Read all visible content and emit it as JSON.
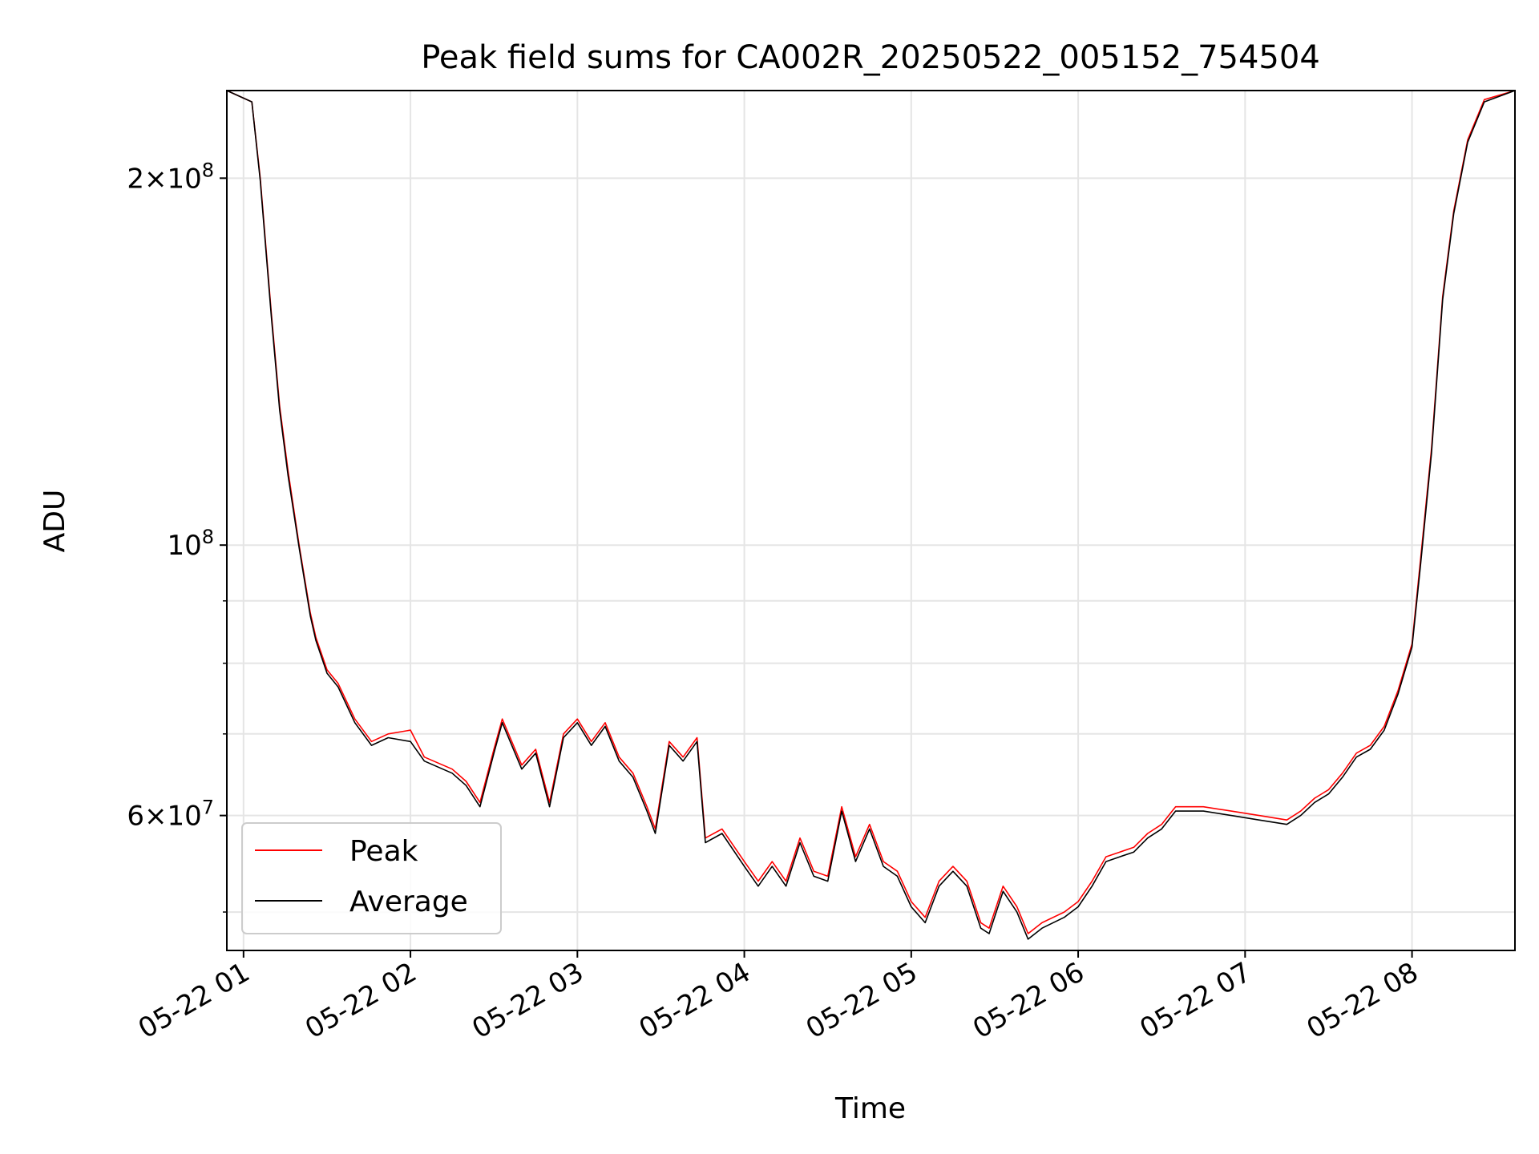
{
  "chart_data": {
    "type": "line",
    "title": "Peak field sums for CA002R_20250522_005152_754504",
    "xlabel": "Time",
    "ylabel": "ADU",
    "yscale": "log",
    "xlim": [
      "2025-05-22 00:54",
      "2025-05-22 08:37"
    ],
    "ylim": [
      46500000,
      236000000
    ],
    "grid": true,
    "legend_position": "lower-left",
    "x_ticks": [
      {
        "value": "2025-05-22 01:00",
        "label": "05-22 01"
      },
      {
        "value": "2025-05-22 02:00",
        "label": "05-22 02"
      },
      {
        "value": "2025-05-22 03:00",
        "label": "05-22 03"
      },
      {
        "value": "2025-05-22 04:00",
        "label": "05-22 04"
      },
      {
        "value": "2025-05-22 05:00",
        "label": "05-22 05"
      },
      {
        "value": "2025-05-22 06:00",
        "label": "05-22 06"
      },
      {
        "value": "2025-05-22 07:00",
        "label": "05-22 07"
      },
      {
        "value": "2025-05-22 08:00",
        "label": "05-22 08"
      }
    ],
    "y_major_ticks": [
      {
        "value": 200000000,
        "mantissa": "2",
        "exponent": "8"
      },
      {
        "value": 100000000,
        "mantissa": "",
        "exponent": "8"
      },
      {
        "value": 60000000,
        "mantissa": "6",
        "exponent": "7"
      }
    ],
    "y_minor_ticks": [
      50000000,
      70000000,
      80000000,
      90000000
    ],
    "series": [
      {
        "name": "Peak",
        "color": "#ff0000",
        "points": [
          [
            "2025-05-22 00:54",
            236000000
          ],
          [
            "2025-05-22 01:03",
            231000000
          ],
          [
            "2025-05-22 01:06",
            200000000
          ],
          [
            "2025-05-22 01:10",
            155000000
          ],
          [
            "2025-05-22 01:13",
            130000000
          ],
          [
            "2025-05-22 01:16",
            115000000
          ],
          [
            "2025-05-22 01:20",
            100000000
          ],
          [
            "2025-05-22 01:24",
            88000000
          ],
          [
            "2025-05-22 01:26",
            84000000
          ],
          [
            "2025-05-22 01:30",
            79000000
          ],
          [
            "2025-05-22 01:34",
            77000000
          ],
          [
            "2025-05-22 01:40",
            72000000
          ],
          [
            "2025-05-22 01:46",
            69000000
          ],
          [
            "2025-05-22 01:52",
            70000000
          ],
          [
            "2025-05-22 02:00",
            70500000
          ],
          [
            "2025-05-22 02:05",
            67000000
          ],
          [
            "2025-05-22 02:15",
            65500000
          ],
          [
            "2025-05-22 02:20",
            64000000
          ],
          [
            "2025-05-22 02:25",
            61500000
          ],
          [
            "2025-05-22 02:30",
            68000000
          ],
          [
            "2025-05-22 02:33",
            72000000
          ],
          [
            "2025-05-22 02:40",
            66000000
          ],
          [
            "2025-05-22 02:45",
            68000000
          ],
          [
            "2025-05-22 02:50",
            61500000
          ],
          [
            "2025-05-22 02:55",
            70000000
          ],
          [
            "2025-05-22 03:00",
            72000000
          ],
          [
            "2025-05-22 03:05",
            69000000
          ],
          [
            "2025-05-22 03:10",
            71500000
          ],
          [
            "2025-05-22 03:15",
            67000000
          ],
          [
            "2025-05-22 03:20",
            65000000
          ],
          [
            "2025-05-22 03:25",
            61000000
          ],
          [
            "2025-05-22 03:28",
            58500000
          ],
          [
            "2025-05-22 03:33",
            69000000
          ],
          [
            "2025-05-22 03:38",
            67000000
          ],
          [
            "2025-05-22 03:43",
            69500000
          ],
          [
            "2025-05-22 03:46",
            57500000
          ],
          [
            "2025-05-22 03:52",
            58500000
          ],
          [
            "2025-05-22 04:00",
            55000000
          ],
          [
            "2025-05-22 04:05",
            53000000
          ],
          [
            "2025-05-22 04:10",
            55000000
          ],
          [
            "2025-05-22 04:15",
            53000000
          ],
          [
            "2025-05-22 04:20",
            57500000
          ],
          [
            "2025-05-22 04:25",
            54000000
          ],
          [
            "2025-05-22 04:30",
            53500000
          ],
          [
            "2025-05-22 04:35",
            61000000
          ],
          [
            "2025-05-22 04:40",
            55500000
          ],
          [
            "2025-05-22 04:45",
            59000000
          ],
          [
            "2025-05-22 04:50",
            55000000
          ],
          [
            "2025-05-22 04:55",
            54000000
          ],
          [
            "2025-05-22 05:00",
            51000000
          ],
          [
            "2025-05-22 05:05",
            49500000
          ],
          [
            "2025-05-22 05:10",
            53000000
          ],
          [
            "2025-05-22 05:15",
            54500000
          ],
          [
            "2025-05-22 05:20",
            53000000
          ],
          [
            "2025-05-22 05:25",
            49000000
          ],
          [
            "2025-05-22 05:28",
            48500000
          ],
          [
            "2025-05-22 05:33",
            52500000
          ],
          [
            "2025-05-22 05:38",
            50500000
          ],
          [
            "2025-05-22 05:42",
            48000000
          ],
          [
            "2025-05-22 05:47",
            49000000
          ],
          [
            "2025-05-22 05:55",
            50000000
          ],
          [
            "2025-05-22 06:00",
            51000000
          ],
          [
            "2025-05-22 06:05",
            53000000
          ],
          [
            "2025-05-22 06:10",
            55500000
          ],
          [
            "2025-05-22 06:15",
            56000000
          ],
          [
            "2025-05-22 06:20",
            56500000
          ],
          [
            "2025-05-22 06:25",
            58000000
          ],
          [
            "2025-05-22 06:30",
            59000000
          ],
          [
            "2025-05-22 06:35",
            61000000
          ],
          [
            "2025-05-22 06:45",
            61000000
          ],
          [
            "2025-05-22 06:55",
            60500000
          ],
          [
            "2025-05-22 07:05",
            60000000
          ],
          [
            "2025-05-22 07:15",
            59500000
          ],
          [
            "2025-05-22 07:20",
            60500000
          ],
          [
            "2025-05-22 07:25",
            62000000
          ],
          [
            "2025-05-22 07:30",
            63000000
          ],
          [
            "2025-05-22 07:35",
            65000000
          ],
          [
            "2025-05-22 07:40",
            67500000
          ],
          [
            "2025-05-22 07:45",
            68500000
          ],
          [
            "2025-05-22 07:50",
            71000000
          ],
          [
            "2025-05-22 07:55",
            76000000
          ],
          [
            "2025-05-22 08:00",
            83000000
          ],
          [
            "2025-05-22 08:03",
            97000000
          ],
          [
            "2025-05-22 08:07",
            120000000
          ],
          [
            "2025-05-22 08:11",
            160000000
          ],
          [
            "2025-05-22 08:15",
            188000000
          ],
          [
            "2025-05-22 08:20",
            215000000
          ],
          [
            "2025-05-22 08:26",
            232000000
          ],
          [
            "2025-05-22 08:37",
            236000000
          ]
        ]
      },
      {
        "name": "Average",
        "color": "#000000",
        "points": [
          [
            "2025-05-22 00:54",
            236000000
          ],
          [
            "2025-05-22 01:03",
            231000000
          ],
          [
            "2025-05-22 01:06",
            199000000
          ],
          [
            "2025-05-22 01:10",
            154000000
          ],
          [
            "2025-05-22 01:13",
            129000000
          ],
          [
            "2025-05-22 01:16",
            114000000
          ],
          [
            "2025-05-22 01:20",
            99500000
          ],
          [
            "2025-05-22 01:24",
            87500000
          ],
          [
            "2025-05-22 01:26",
            83500000
          ],
          [
            "2025-05-22 01:30",
            78500000
          ],
          [
            "2025-05-22 01:34",
            76500000
          ],
          [
            "2025-05-22 01:40",
            71500000
          ],
          [
            "2025-05-22 01:46",
            68500000
          ],
          [
            "2025-05-22 01:52",
            69500000
          ],
          [
            "2025-05-22 02:00",
            69000000
          ],
          [
            "2025-05-22 02:05",
            66500000
          ],
          [
            "2025-05-22 02:15",
            65000000
          ],
          [
            "2025-05-22 02:20",
            63500000
          ],
          [
            "2025-05-22 02:25",
            61000000
          ],
          [
            "2025-05-22 02:30",
            67500000
          ],
          [
            "2025-05-22 02:33",
            71500000
          ],
          [
            "2025-05-22 02:40",
            65500000
          ],
          [
            "2025-05-22 02:45",
            67500000
          ],
          [
            "2025-05-22 02:50",
            61000000
          ],
          [
            "2025-05-22 02:55",
            69500000
          ],
          [
            "2025-05-22 03:00",
            71500000
          ],
          [
            "2025-05-22 03:05",
            68500000
          ],
          [
            "2025-05-22 03:10",
            71000000
          ],
          [
            "2025-05-22 03:15",
            66500000
          ],
          [
            "2025-05-22 03:20",
            64500000
          ],
          [
            "2025-05-22 03:25",
            60500000
          ],
          [
            "2025-05-22 03:28",
            58000000
          ],
          [
            "2025-05-22 03:33",
            68500000
          ],
          [
            "2025-05-22 03:38",
            66500000
          ],
          [
            "2025-05-22 03:43",
            69000000
          ],
          [
            "2025-05-22 03:46",
            57000000
          ],
          [
            "2025-05-22 03:52",
            58000000
          ],
          [
            "2025-05-22 04:00",
            54500000
          ],
          [
            "2025-05-22 04:05",
            52500000
          ],
          [
            "2025-05-22 04:10",
            54500000
          ],
          [
            "2025-05-22 04:15",
            52500000
          ],
          [
            "2025-05-22 04:20",
            57000000
          ],
          [
            "2025-05-22 04:25",
            53500000
          ],
          [
            "2025-05-22 04:30",
            53000000
          ],
          [
            "2025-05-22 04:35",
            60500000
          ],
          [
            "2025-05-22 04:40",
            55000000
          ],
          [
            "2025-05-22 04:45",
            58500000
          ],
          [
            "2025-05-22 04:50",
            54500000
          ],
          [
            "2025-05-22 04:55",
            53500000
          ],
          [
            "2025-05-22 05:00",
            50500000
          ],
          [
            "2025-05-22 05:05",
            49000000
          ],
          [
            "2025-05-22 05:10",
            52500000
          ],
          [
            "2025-05-22 05:15",
            54000000
          ],
          [
            "2025-05-22 05:20",
            52500000
          ],
          [
            "2025-05-22 05:25",
            48500000
          ],
          [
            "2025-05-22 05:28",
            48000000
          ],
          [
            "2025-05-22 05:33",
            52000000
          ],
          [
            "2025-05-22 05:38",
            50000000
          ],
          [
            "2025-05-22 05:42",
            47500000
          ],
          [
            "2025-05-22 05:47",
            48500000
          ],
          [
            "2025-05-22 05:55",
            49500000
          ],
          [
            "2025-05-22 06:00",
            50500000
          ],
          [
            "2025-05-22 06:05",
            52500000
          ],
          [
            "2025-05-22 06:10",
            55000000
          ],
          [
            "2025-05-22 06:15",
            55500000
          ],
          [
            "2025-05-22 06:20",
            56000000
          ],
          [
            "2025-05-22 06:25",
            57500000
          ],
          [
            "2025-05-22 06:30",
            58500000
          ],
          [
            "2025-05-22 06:35",
            60500000
          ],
          [
            "2025-05-22 06:45",
            60500000
          ],
          [
            "2025-05-22 06:55",
            60000000
          ],
          [
            "2025-05-22 07:05",
            59500000
          ],
          [
            "2025-05-22 07:15",
            59000000
          ],
          [
            "2025-05-22 07:20",
            60000000
          ],
          [
            "2025-05-22 07:25",
            61500000
          ],
          [
            "2025-05-22 07:30",
            62500000
          ],
          [
            "2025-05-22 07:35",
            64500000
          ],
          [
            "2025-05-22 07:40",
            67000000
          ],
          [
            "2025-05-22 07:45",
            68000000
          ],
          [
            "2025-05-22 07:50",
            70500000
          ],
          [
            "2025-05-22 07:55",
            75500000
          ],
          [
            "2025-05-22 08:00",
            82500000
          ],
          [
            "2025-05-22 08:03",
            96000000
          ],
          [
            "2025-05-22 08:07",
            119000000
          ],
          [
            "2025-05-22 08:11",
            159000000
          ],
          [
            "2025-05-22 08:15",
            187000000
          ],
          [
            "2025-05-22 08:20",
            214000000
          ],
          [
            "2025-05-22 08:26",
            231000000
          ],
          [
            "2025-05-22 08:37",
            236000000
          ]
        ]
      }
    ]
  }
}
